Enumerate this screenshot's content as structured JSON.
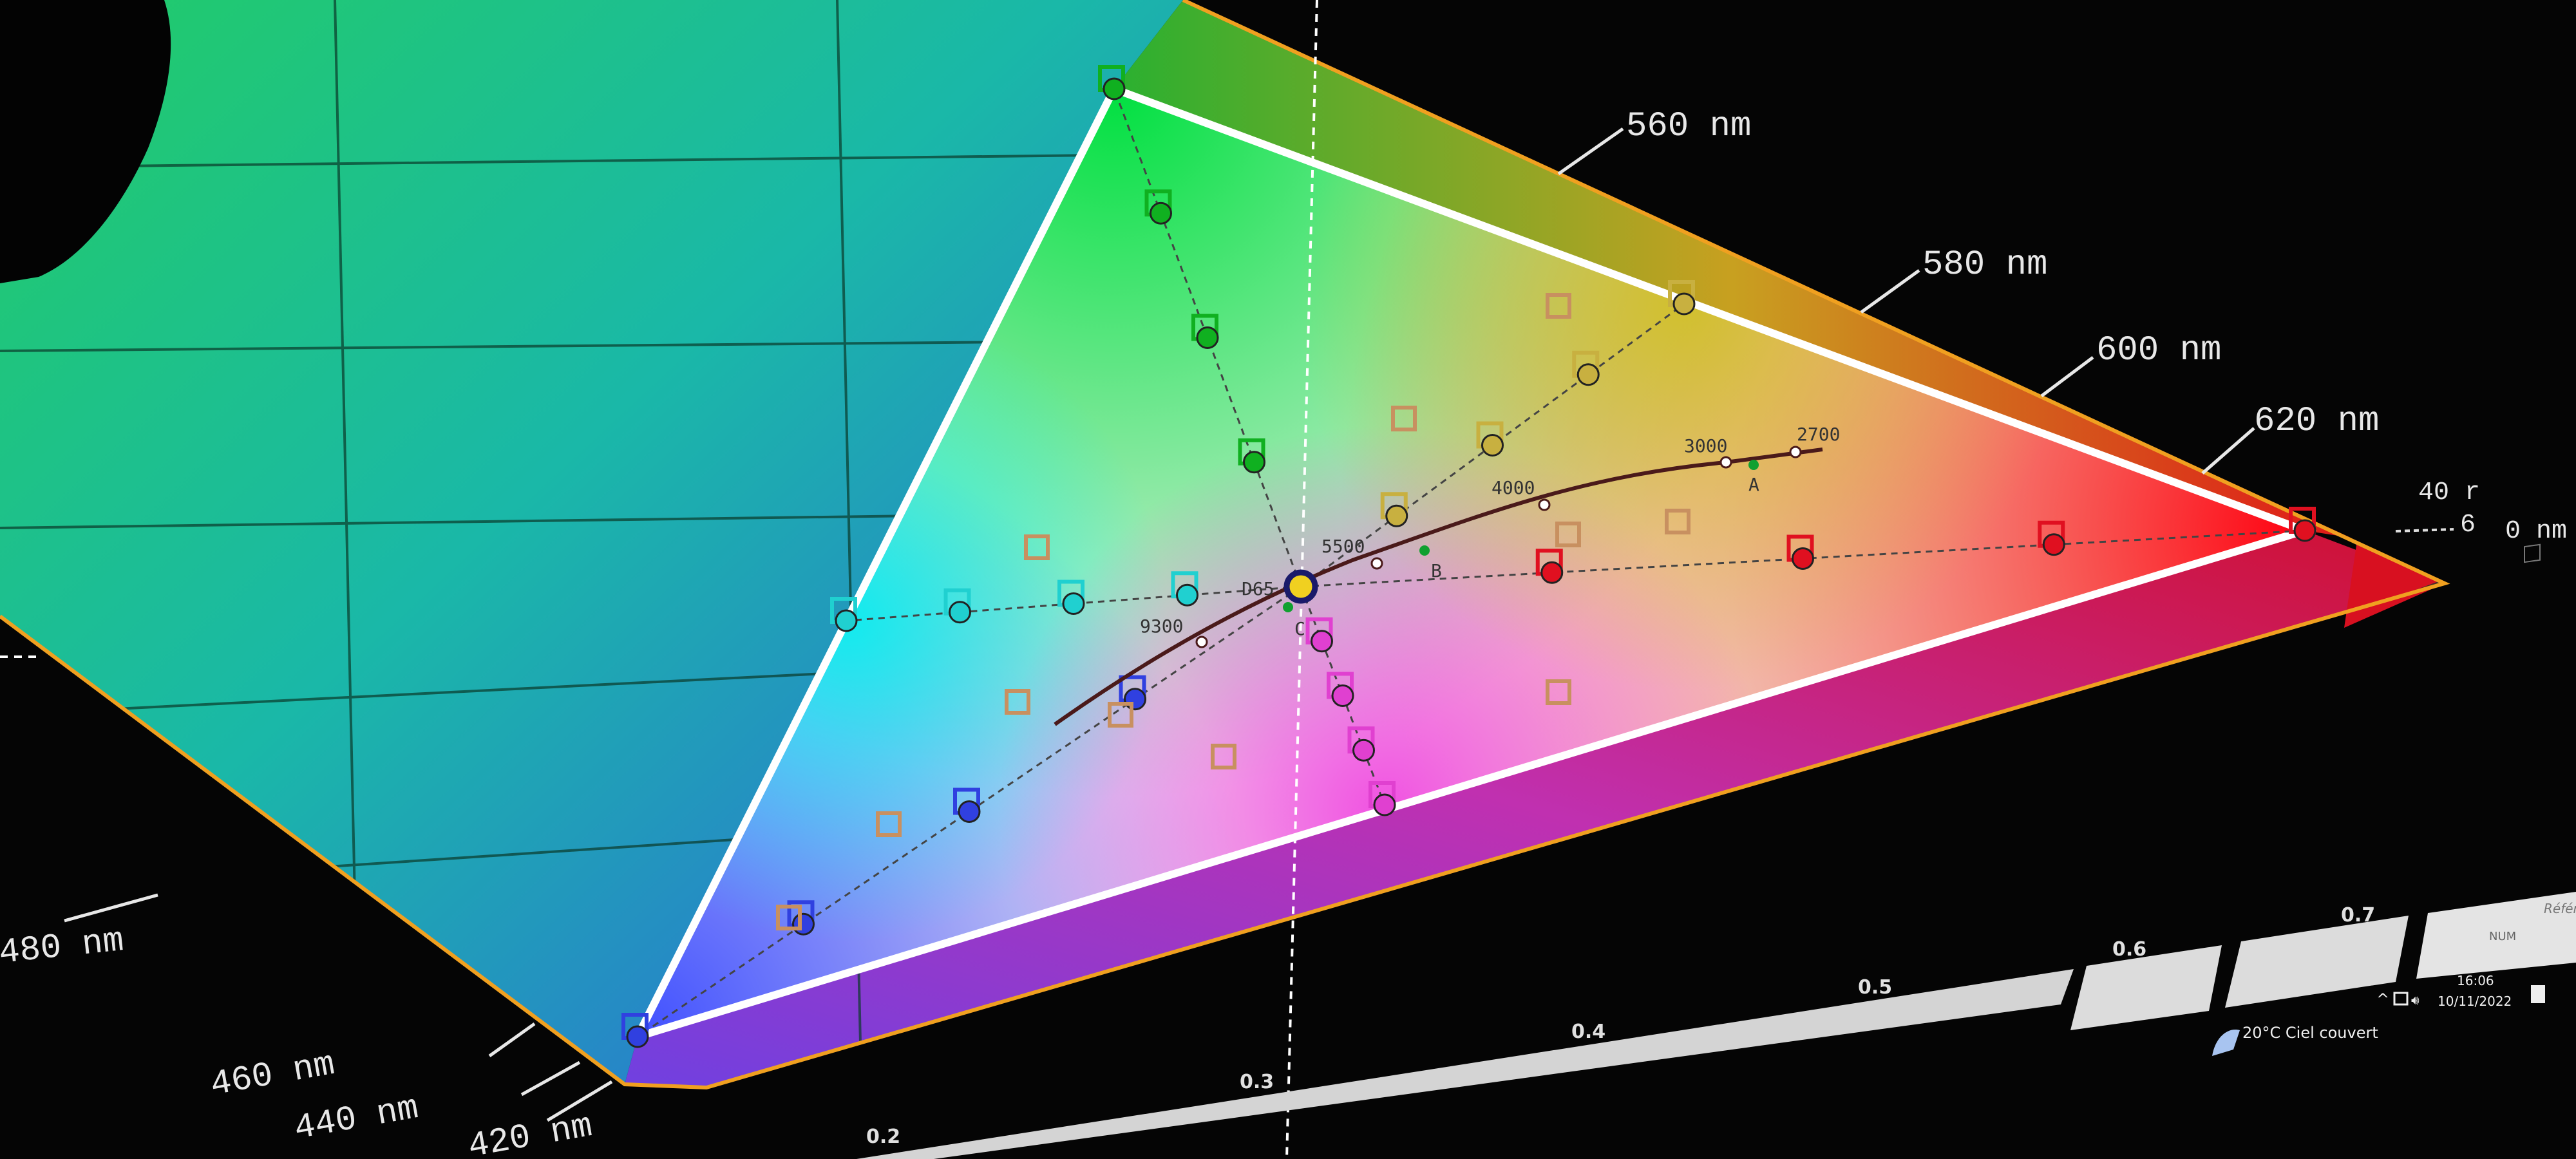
{
  "chart_data": {
    "type": "scatter",
    "title": "",
    "xlabel": "",
    "ylabel": "",
    "x_tick_labels": [
      "0.2",
      "0.3",
      "0.4",
      "0.5",
      "0.6",
      "0.7"
    ],
    "grid": true,
    "wavelength_labels": [
      "560 nm",
      "580 nm",
      "600 nm",
      "620 nm",
      "480 nm",
      "460 nm",
      "440 nm",
      "420 nm",
      "40 r",
      "6",
      "0 nm"
    ],
    "cct_labels": [
      "9300",
      "5500",
      "4000",
      "3000",
      "2700"
    ],
    "illuminant_labels": [
      "D65",
      "A",
      "B",
      "C"
    ],
    "gamut_primaries": [
      {
        "name": "red",
        "x": 0.68,
        "y": 0.32
      },
      {
        "name": "green",
        "x": 0.265,
        "y": 0.69
      },
      {
        "name": "blue",
        "x": 0.15,
        "y": 0.06
      }
    ],
    "white_point": {
      "name": "D65",
      "x": 0.3127,
      "y": 0.329
    },
    "colors": {
      "red": "#e01020",
      "green": "#10b020",
      "blue": "#3040e0",
      "cyan": "#20d0d0",
      "magenta": "#e040d0",
      "yellow": "#c8b040",
      "locus_outline": "#f0a020",
      "gamut_outline": "#ffffff",
      "planckian": "#4a1a1a"
    }
  },
  "taskbar": {
    "weather": "20°C  Ciel couvert",
    "time": "16:06",
    "date": "10/11/2022",
    "num": "NUM",
    "reference": "Référen",
    "chevron": "^"
  }
}
